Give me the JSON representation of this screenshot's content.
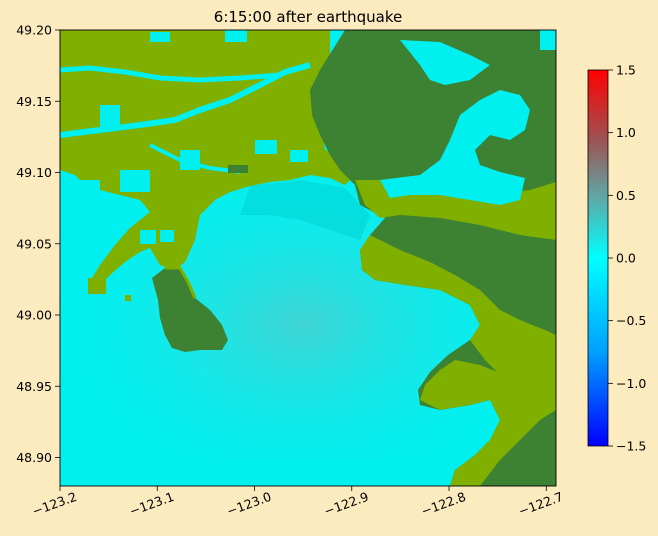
{
  "chart_data": {
    "type": "heatmap",
    "title": "6:15:00 after earthquake",
    "xlabel": "",
    "ylabel": "",
    "xlim": [
      -123.2,
      -122.69
    ],
    "ylim": [
      48.88,
      49.2
    ],
    "x_ticks": [
      {
        "value": -123.2,
        "label": "−123.2"
      },
      {
        "value": -123.1,
        "label": "−123.1"
      },
      {
        "value": -123.0,
        "label": "−123.0"
      },
      {
        "value": -122.9,
        "label": "−122.9"
      },
      {
        "value": -122.8,
        "label": "−122.8"
      },
      {
        "value": -122.7,
        "label": "−122.7"
      }
    ],
    "y_ticks": [
      {
        "value": 48.9,
        "label": "48.90"
      },
      {
        "value": 48.95,
        "label": "48.95"
      },
      {
        "value": 49.0,
        "label": "49.00"
      },
      {
        "value": 49.05,
        "label": "49.05"
      },
      {
        "value": 49.1,
        "label": "49.10"
      },
      {
        "value": 49.15,
        "label": "49.15"
      },
      {
        "value": 49.2,
        "label": "49.20"
      }
    ],
    "colorbar": {
      "range": [
        -1.5,
        1.5
      ],
      "ticks": [
        {
          "value": 1.5,
          "label": "1.5"
        },
        {
          "value": 1.0,
          "label": "1.0"
        },
        {
          "value": 0.5,
          "label": "0.5"
        },
        {
          "value": 0.0,
          "label": "0.0"
        },
        {
          "value": -0.5,
          "label": "−0.5"
        },
        {
          "value": -1.0,
          "label": "−1.0"
        },
        {
          "value": -1.5,
          "label": "−1.5"
        }
      ],
      "colors": [
        "#0000ff",
        "#00a0ff",
        "#00ffff",
        "#5fa8a8",
        "#a05050",
        "#ff0000"
      ]
    },
    "map_colors": {
      "water": "#00f0f0",
      "lowland": "#7fb000",
      "highland": "#3c8232"
    },
    "grid": false,
    "legend": "none"
  }
}
